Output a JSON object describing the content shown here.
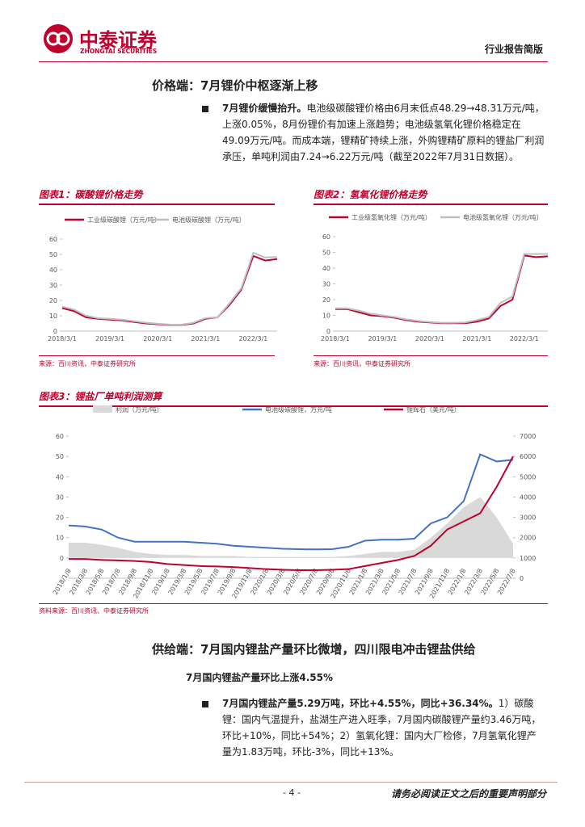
{
  "header": {
    "company": "中泰证券",
    "company_en": "ZHONGTAI SECURITIES",
    "report_type": "行业报告简版"
  },
  "sections": [
    {
      "heading": "价格端：7月锂价中枢逐渐上移",
      "bullets": [
        {
          "lead": "7月锂价缓慢抬升。",
          "text": "电池级碳酸锂价格由6月末低点48.29→48.31万元/吨，上涨0.05%，8月份锂价有加速上涨趋势；电池级氢氧化锂价格稳定在49.09万元/吨。而成本端，锂精矿持续上涨，外购锂精矿原料的锂盐厂利润承压，单吨利润由7.24→6.22万元/吨（截至2022年7月31日数据）。"
        }
      ]
    },
    {
      "heading": "供给端：7月国内锂盐产量环比微增，四川限电冲击锂盐供给",
      "subheading": "7月国内锂盐产量环比上涨4.55%",
      "bullets": [
        {
          "lead": "7月国内锂盐产量5.29万吨，环比+4.55%，同比+36.34%。",
          "text": "1）碳酸锂：国内气温提升，盐湖生产进入旺季，7月国内碳酸锂产量约3.46万吨，环比+10%，同比+54%；2）氢氧化锂：国内大厂检修，7月氢氧化锂产量为1.83万吨，环比-3%，同比+13%。"
        }
      ]
    }
  ],
  "chart_data": [
    {
      "type": "line",
      "title": "图表1：碳酸锂价格走势",
      "source": "来源：百川资讯，中泰证券研究所",
      "categories": [
        "2018/3/1",
        null,
        null,
        null,
        "2019/3/1",
        null,
        null,
        null,
        "2020/3/1",
        null,
        null,
        null,
        "2021/3/1",
        null,
        null,
        null,
        "2022/3/1",
        null,
        null
      ],
      "series": [
        {
          "name": "工业级碳酸锂（万元/吨）",
          "color": "#c0002d",
          "values": [
            15,
            13,
            9,
            8,
            7.5,
            7,
            6,
            5,
            4.5,
            4,
            4,
            5,
            8,
            9,
            17,
            27,
            49,
            46,
            47
          ]
        },
        {
          "name": "电池级碳酸锂（万元/吨）",
          "color": "#bfbfbf",
          "values": [
            16,
            14,
            10,
            8.5,
            8,
            7.5,
            6.5,
            5.5,
            4.8,
            4.3,
            4.2,
            5.5,
            8.5,
            9,
            18,
            28,
            51,
            48,
            48.3
          ]
        }
      ],
      "ylim": [
        0,
        60
      ],
      "yticks": [
        0,
        10,
        20,
        30,
        40,
        50,
        60
      ]
    },
    {
      "type": "line",
      "title": "图表2：氢氧化锂价格走势",
      "source": "来源：百川资讯，中泰证券研究所",
      "categories": [
        "2018/3/1",
        null,
        null,
        null,
        "2019/3/1",
        null,
        null,
        null,
        "2020/3/1",
        null,
        null,
        null,
        "2021/3/1",
        null,
        null,
        null,
        "2022/3/1",
        null,
        null
      ],
      "series": [
        {
          "name": "工业级氢氧化锂（万元/吨）",
          "color": "#c0002d",
          "values": [
            14,
            14,
            12,
            10,
            9.5,
            8.5,
            7,
            6,
            5.5,
            5,
            5,
            5,
            6,
            8,
            16,
            20,
            48,
            47,
            47.5
          ]
        },
        {
          "name": "电池级氢氧化锂（万元/吨）",
          "color": "#bfbfbf",
          "values": [
            14.5,
            14.5,
            13,
            11,
            10,
            9,
            7.5,
            6.5,
            5.8,
            5.3,
            5.3,
            5.5,
            7,
            9,
            18,
            22,
            49,
            49,
            49
          ]
        }
      ],
      "ylim": [
        0,
        60
      ],
      "yticks": [
        0,
        10,
        20,
        30,
        40,
        50,
        60
      ]
    },
    {
      "type": "line",
      "title": "图表3：锂盐厂单吨利润测算",
      "source": "资料来源：百川资讯、中泰证券研究所",
      "categories": [
        "2018/1/8",
        "2018/3/8",
        "2018/5/8",
        "2018/7/8",
        "2018/9/8",
        "2018/11/8",
        "2019/1/8",
        "2019/3/8",
        "2019/5/8",
        "2019/7/8",
        "2019/9/8",
        "2019/11/8",
        "2020/1/8",
        "2020/3/8",
        "2020/5/8",
        "2020/7/8",
        "2020/9/8",
        "2020/11/8",
        "2021/1/8",
        "2021/3/8",
        "2021/5/8",
        "2021/7/8",
        "2021/9/8",
        "2021/11/8",
        "2022/1/8",
        "2022/3/8",
        "2022/5/8",
        "2022/7/8"
      ],
      "series": [
        {
          "name": "利润（万元/吨）",
          "type": "area",
          "color": "#d9d9d9",
          "values": [
            7.5,
            7.5,
            6.5,
            5,
            3,
            2,
            1.5,
            1.5,
            1,
            1,
            1,
            0.5,
            0.5,
            0.5,
            0.5,
            0.5,
            0.5,
            1,
            2,
            3,
            3,
            4,
            10,
            17,
            25,
            30,
            20,
            7
          ]
        },
        {
          "name": "电池级碳酸锂，万元/吨",
          "color": "#4472c4",
          "values": [
            16,
            15.5,
            14,
            10,
            8,
            8,
            8,
            8,
            7.5,
            7,
            6,
            5.5,
            5,
            4.5,
            4.3,
            4.2,
            4.3,
            5.5,
            8.5,
            9,
            9,
            9.5,
            17,
            20,
            28,
            51,
            47.5,
            48.3
          ]
        },
        {
          "name": "锂辉石（美元/吨）",
          "color": "#c0002d",
          "axis": "y2",
          "values": [
            950,
            950,
            900,
            880,
            850,
            800,
            700,
            650,
            600,
            580,
            550,
            500,
            450,
            420,
            400,
            400,
            420,
            450,
            600,
            750,
            900,
            1100,
            1600,
            2400,
            2800,
            3200,
            4500,
            6000
          ]
        }
      ],
      "ylim": [
        -10,
        60
      ],
      "yticks": [
        0,
        10,
        20,
        30,
        40,
        50,
        60
      ],
      "y2lim": [
        0,
        7000
      ],
      "y2ticks": [
        0,
        1000,
        2000,
        3000,
        4000,
        5000,
        6000,
        7000
      ]
    }
  ],
  "footer": {
    "page": "- 4 -",
    "disclaimer": "请务必阅读正文之后的重要声明部分"
  }
}
